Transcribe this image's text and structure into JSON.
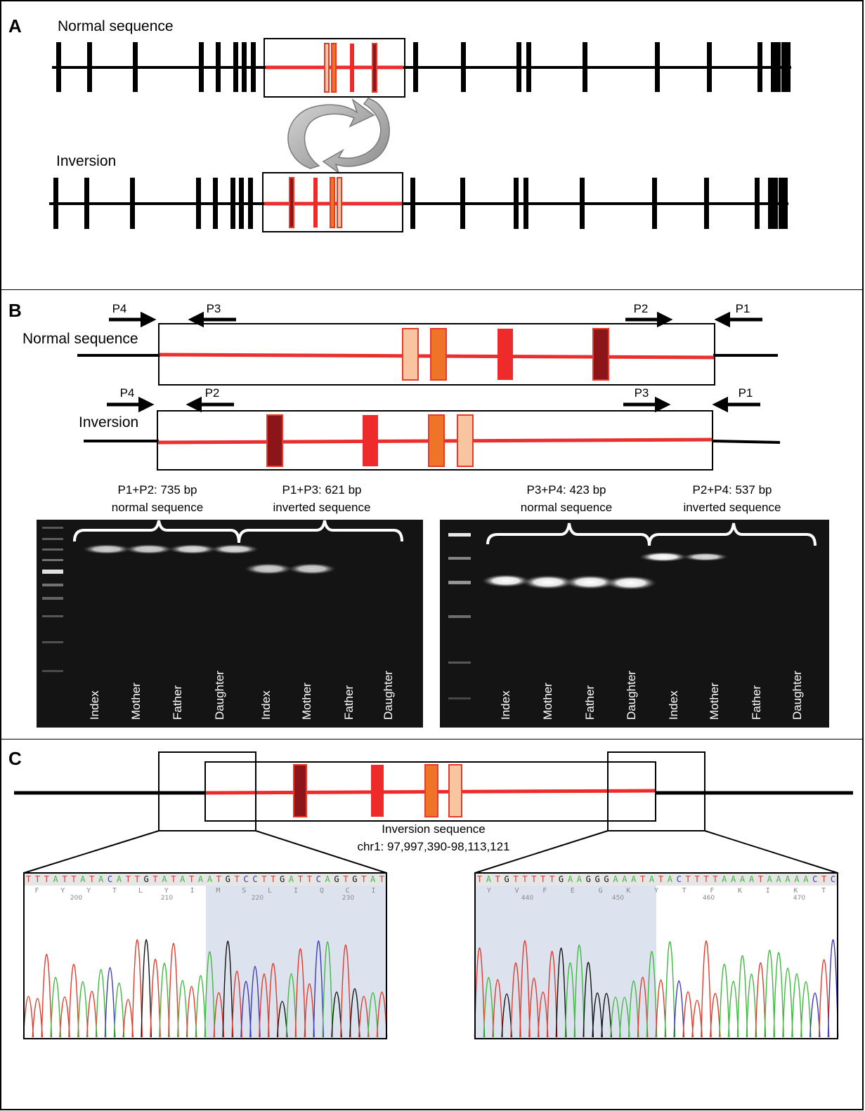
{
  "panel_a": {
    "letter": "A",
    "normal_label": "Normal sequence",
    "inversion_label": "Inversion"
  },
  "panel_b": {
    "letter": "B",
    "normal_label": "Normal sequence",
    "inversion_label": "Inversion",
    "normal_primers": {
      "p4": "P4",
      "p3": "P3",
      "p2": "P2",
      "p1": "P1"
    },
    "inversion_primers": {
      "p4": "P4",
      "p2": "P2",
      "p3": "P3",
      "p1": "P1"
    },
    "gel_left": {
      "groups": [
        {
          "line1": "P1+P2: 735 bp",
          "line2": "normal sequence"
        },
        {
          "line1": "P1+P3: 621 bp",
          "line2": "inverted sequence"
        }
      ],
      "lanes": [
        "Index",
        "Mother",
        "Father",
        "Daughter",
        "Index",
        "Mother",
        "Father",
        "Daughter"
      ]
    },
    "gel_right": {
      "groups": [
        {
          "line1": "P3+P4: 423 bp",
          "line2": "normal sequence"
        },
        {
          "line1": "P2+P4: 537 bp",
          "line2": "inverted sequence"
        }
      ],
      "lanes": [
        "Index",
        "Mother",
        "Father",
        "Daughter",
        "Index",
        "Mother",
        "Father",
        "Daughter"
      ]
    }
  },
  "panel_c": {
    "letter": "C",
    "caption_line1": "Inversion sequence",
    "caption_line2": "chr1: 97,997,390-98,113,121",
    "left_trace": {
      "bases": "TTTATTATACATTGTATATAATGTCCTTGATTCAGTGTAT",
      "aa": [
        "F",
        "Y",
        "Y",
        "T",
        "L",
        "Y",
        "I",
        "M",
        "S",
        "L",
        "I",
        "Q",
        "C",
        "I"
      ],
      "positions": [
        "200",
        "210",
        "220",
        "230"
      ]
    },
    "right_trace": {
      "bases": "TATGTTTTTGAAGGGAAATATACTTTTAAAATAAAAACTC",
      "aa": [
        "Y",
        "V",
        "F",
        "E",
        "G",
        "K",
        "Y",
        "T",
        "F",
        "K",
        "I",
        "K",
        "T"
      ],
      "positions": [
        "440",
        "450",
        "460",
        "470"
      ]
    }
  },
  "colors": {
    "exon_light": "#f9c4a0",
    "exon_orange": "#f07428",
    "exon_red": "#ee2a2a",
    "exon_dark": "#8b1518",
    "inverted_line": "#e8302f",
    "base_A": "#3fb83f",
    "base_C": "#3a3ab8",
    "base_G": "#111111",
    "base_T": "#e23a2a"
  }
}
